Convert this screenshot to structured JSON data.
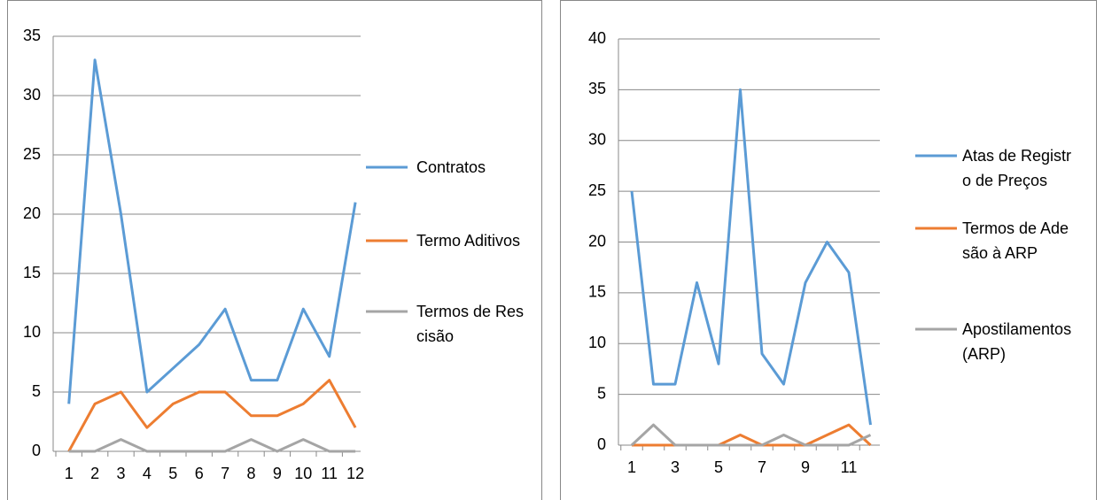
{
  "chart_data": [
    {
      "type": "line",
      "categories": [
        1,
        2,
        3,
        4,
        5,
        6,
        7,
        8,
        9,
        10,
        11,
        12
      ],
      "series": [
        {
          "name": "Contratos",
          "color": "#5b9bd5",
          "values": [
            4,
            33,
            20,
            5,
            7,
            9,
            12,
            6,
            6,
            12,
            8,
            21
          ]
        },
        {
          "name": "Termo Aditivos",
          "color": "#ed7d31",
          "values": [
            0,
            4,
            5,
            2,
            4,
            5,
            5,
            3,
            3,
            4,
            6,
            2
          ]
        },
        {
          "name": "Termos de Rescisão",
          "color": "#a5a5a5",
          "values": [
            0,
            0,
            1,
            0,
            0,
            0,
            0,
            1,
            0,
            1,
            0,
            0
          ]
        }
      ],
      "ylim": [
        0,
        35
      ],
      "yticks": [
        0,
        5,
        10,
        15,
        20,
        25,
        30,
        35
      ],
      "grid": true,
      "legend": "right"
    },
    {
      "type": "line",
      "categories": [
        1,
        null,
        3,
        null,
        5,
        null,
        7,
        null,
        9,
        null,
        11,
        null
      ],
      "series": [
        {
          "name": "Atas de Registro de Preços",
          "color": "#5b9bd5",
          "values": [
            25,
            6,
            6,
            16,
            8,
            35,
            9,
            6,
            16,
            20,
            17,
            2
          ]
        },
        {
          "name": "Termos de Adesão à ARP",
          "color": "#ed7d31",
          "values": [
            0,
            0,
            0,
            0,
            0,
            1,
            0,
            0,
            0,
            1,
            2,
            0
          ]
        },
        {
          "name": "Apostilamentos (ARP)",
          "color": "#a5a5a5",
          "values": [
            0,
            2,
            0,
            0,
            0,
            0,
            0,
            1,
            0,
            0,
            0,
            1
          ]
        }
      ],
      "ylim": [
        0,
        40
      ],
      "yticks": [
        0,
        5,
        10,
        15,
        20,
        25,
        30,
        35,
        40
      ],
      "grid": true,
      "legend": "right"
    }
  ]
}
